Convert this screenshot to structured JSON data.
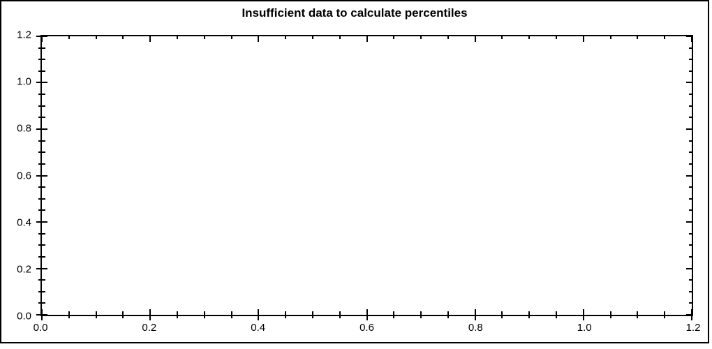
{
  "window": {
    "background_color": "#ffffff",
    "frame_color": "#000000"
  },
  "chart_data": {
    "type": "scatter",
    "title": "Insufficient data to calculate percentiles",
    "series": [],
    "xlabel": "",
    "ylabel": "",
    "xlim": [
      0.0,
      1.2
    ],
    "ylim": [
      0.0,
      1.2
    ],
    "x_major_step": 0.2,
    "x_minor_step": 0.05,
    "y_major_step": 0.2,
    "y_minor_step": 0.05,
    "x_tick_labels": [
      "0.0",
      "0.2",
      "0.4",
      "0.6",
      "0.8",
      "1.0",
      "1.2"
    ],
    "y_tick_labels": [
      "0.0",
      "0.2",
      "0.4",
      "0.6",
      "0.8",
      "1.0",
      "1.2"
    ],
    "grid": false,
    "legend": null,
    "axis_color": "#000000",
    "text_color": "#000000"
  }
}
